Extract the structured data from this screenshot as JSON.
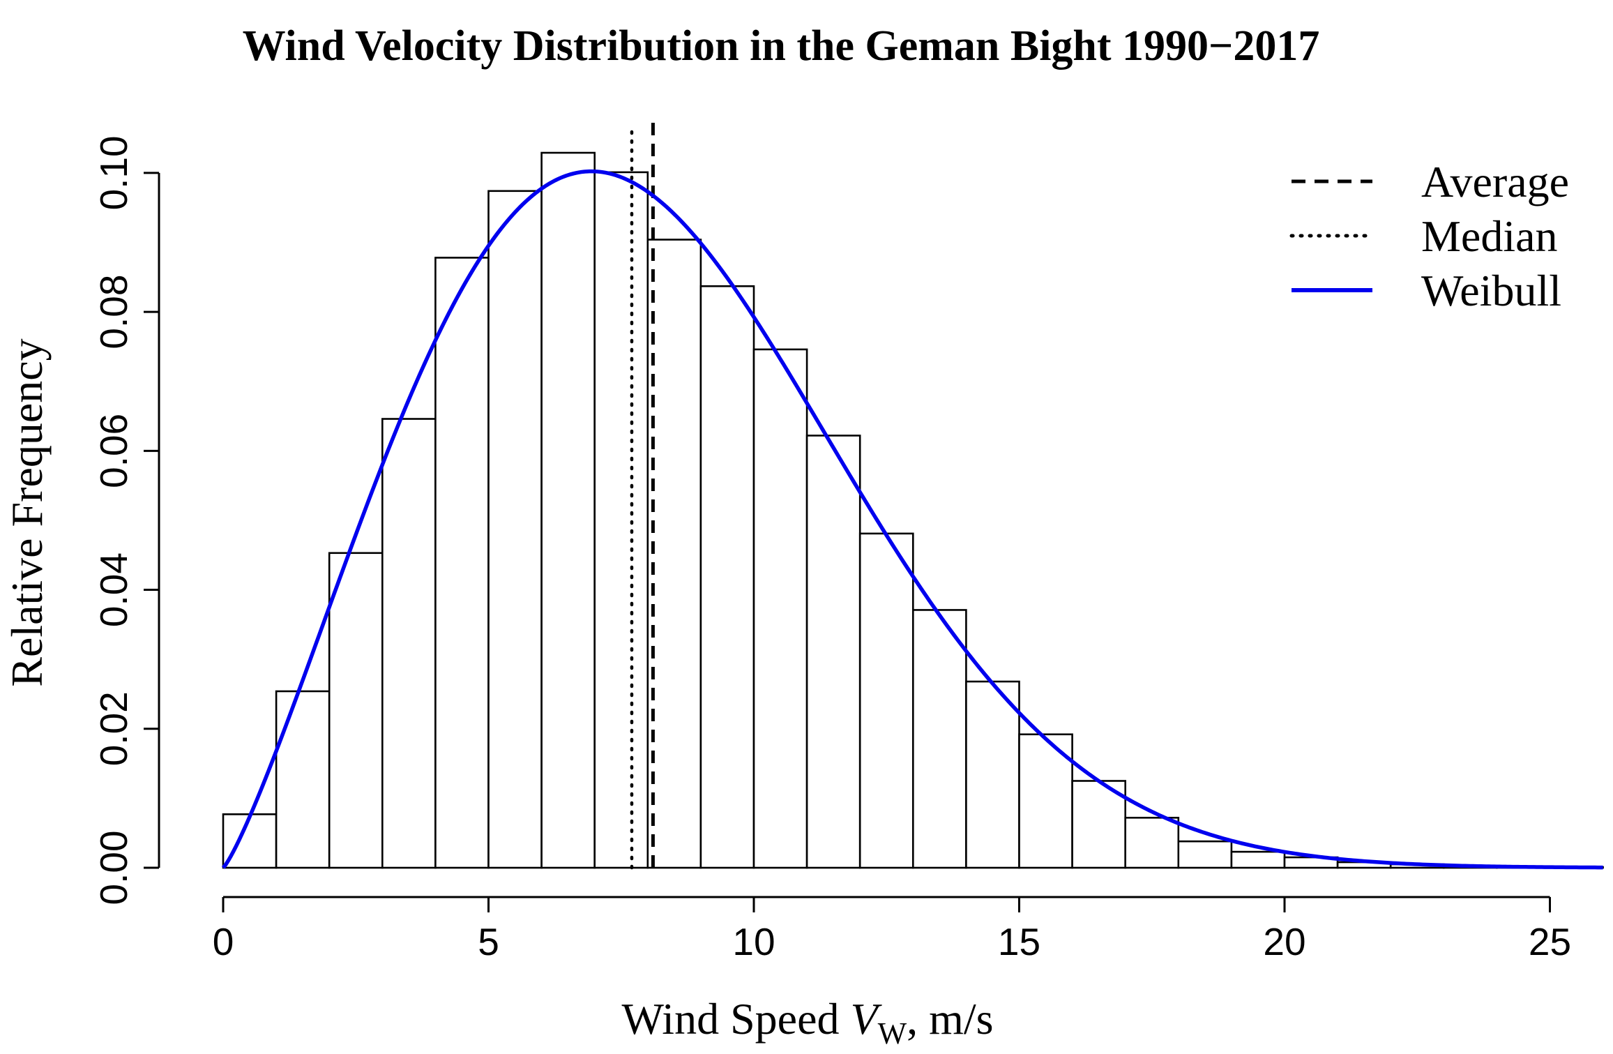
{
  "chart_data": {
    "type": "bar",
    "title": "Wind Velocity Distribution in the Geman Bight 1990−2017",
    "xlabel_prefix": "Wind Speed ",
    "xlabel_var": "V",
    "xlabel_sub": "W",
    "xlabel_suffix": ", m/s",
    "ylabel": "Relative Frequency",
    "xlim": [
      0,
      26
    ],
    "ylim": [
      0,
      0.1
    ],
    "x_ticks": [
      0,
      5,
      10,
      15,
      20,
      25
    ],
    "x_tick_labels": [
      "0",
      "5",
      "10",
      "15",
      "20",
      "25"
    ],
    "y_ticks": [
      0,
      0.02,
      0.04,
      0.06,
      0.08,
      0.1
    ],
    "y_tick_labels": [
      "0.00",
      "0.02",
      "0.04",
      "0.06",
      "0.08",
      "0.10"
    ],
    "bin_width": 1,
    "bin_starts": [
      0,
      1,
      2,
      3,
      4,
      5,
      6,
      7,
      8,
      9,
      10,
      11,
      12,
      13,
      14,
      15,
      16,
      17,
      18,
      19,
      20,
      21,
      22,
      23,
      24,
      25
    ],
    "values": [
      0.0077,
      0.0254,
      0.0453,
      0.0646,
      0.0878,
      0.0974,
      0.1029,
      0.1001,
      0.0904,
      0.0837,
      0.0746,
      0.0622,
      0.0481,
      0.0371,
      0.0268,
      0.0192,
      0.0125,
      0.0072,
      0.0038,
      0.0023,
      0.0015,
      0.0008,
      0.0005,
      0.0003,
      0.0001,
      0.0001
    ],
    "average": 8.1,
    "median": 7.7,
    "weibull": {
      "shape_k": 2.2,
      "scale_lambda": 9.14,
      "x_max": 26
    },
    "legend": [
      {
        "label": "Average",
        "style": "dashed",
        "color": "#000000"
      },
      {
        "label": "Median",
        "style": "dotted",
        "color": "#000000"
      },
      {
        "label": "Weibull",
        "style": "solid",
        "color": "#0000ee"
      }
    ],
    "legend_position": "top-right",
    "colors": {
      "bars": "#ffffff",
      "bar_edge": "#000000",
      "weibull": "#0000ee",
      "lines": "#000000"
    }
  }
}
